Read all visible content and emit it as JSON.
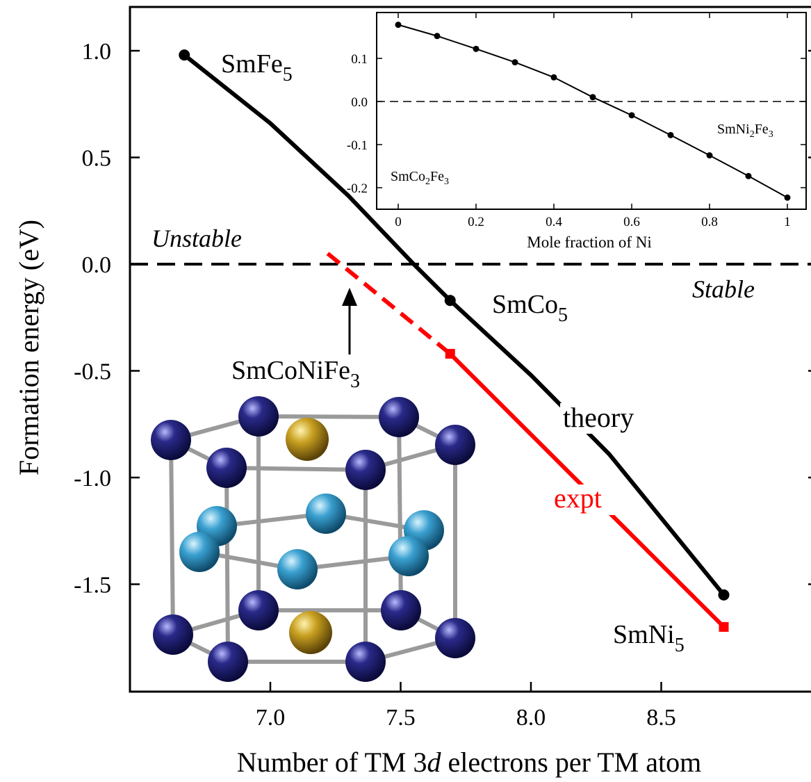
{
  "chart_data": [
    {
      "type": "line",
      "xlabel_parts": [
        "Number of TM 3",
        "d",
        " electrons per TM atom"
      ],
      "ylabel": "Formation energy (eV)",
      "xlim": [
        6.5,
        9.0
      ],
      "ylim": [
        -2.0,
        1.2
      ],
      "xticks": [
        7.0,
        7.5,
        8.0,
        8.5
      ],
      "xtick_labels": [
        "7.0",
        "7.5",
        "8.0",
        "8.5"
      ],
      "yticks": [
        1.0,
        0.5,
        0.0,
        -0.5,
        -1.0,
        -1.5
      ],
      "ytick_labels": [
        "1.0",
        "0.5",
        "0.0",
        "-0.5",
        "-1.0",
        "-1.5"
      ],
      "reference_line": {
        "y": 0.0,
        "style": "dashed"
      },
      "region_labels": [
        "Unstable",
        "Stable"
      ],
      "series": [
        {
          "name": "theory",
          "color": "#000000",
          "style": "solid",
          "x": [
            6.67,
            7.0,
            7.3,
            7.55,
            7.69,
            8.0,
            8.3,
            8.74
          ],
          "y": [
            0.98,
            0.66,
            0.32,
            0.0,
            -0.17,
            -0.52,
            -0.89,
            -1.55
          ],
          "marked_x": [
            6.67,
            7.69,
            8.74
          ]
        },
        {
          "name": "expt",
          "color": "#ff0000",
          "segments": [
            {
              "style": "dashed",
              "x": [
                7.22,
                7.69
              ],
              "y": [
                0.05,
                -0.42
              ]
            },
            {
              "style": "solid",
              "x": [
                7.69,
                8.74
              ],
              "y": [
                -0.42,
                -1.7
              ]
            }
          ],
          "marked_x": [
            7.69,
            8.74
          ]
        }
      ],
      "compound_labels": [
        {
          "id": "smfe5",
          "text": "SmFe",
          "sub": "5"
        },
        {
          "id": "smco5",
          "text": "SmCo",
          "sub": "5"
        },
        {
          "id": "smni5",
          "text": "SmNi",
          "sub": "5"
        },
        {
          "id": "smconife3",
          "text": "SmCoNiFe",
          "sub": "3"
        }
      ]
    },
    {
      "type": "line",
      "xlabel": "Mole fraction of Ni",
      "xlim": [
        -0.05,
        1.05
      ],
      "ylim": [
        -0.26,
        0.2
      ],
      "xticks": [
        0,
        0.2,
        0.4,
        0.6,
        0.8,
        1
      ],
      "xtick_labels": [
        "0",
        "0.2",
        "0.4",
        "0.6",
        "0.8",
        "1"
      ],
      "yticks": [
        0.1,
        0.0,
        -0.1,
        -0.2
      ],
      "ytick_labels": [
        "0.1",
        "0.0",
        "-0.1",
        "-0.2"
      ],
      "reference_line": {
        "y": 0.0,
        "style": "dashed"
      },
      "series": [
        {
          "color": "#000000",
          "x": [
            0,
            0.1,
            0.2,
            0.3,
            0.4,
            0.5,
            0.6,
            0.7,
            0.8,
            0.9,
            1.0
          ],
          "y": [
            0.178,
            0.152,
            0.122,
            0.091,
            0.056,
            0.01,
            -0.032,
            -0.078,
            -0.125,
            -0.173,
            -0.223
          ]
        }
      ],
      "end_labels": [
        {
          "id": "smco2fe3",
          "parts": [
            "SmCo",
            "2",
            "Fe",
            "3"
          ]
        },
        {
          "id": "smni2fe3",
          "parts": [
            "SmNi",
            "2",
            "Fe",
            "3"
          ]
        }
      ]
    }
  ],
  "crystal_structure_colors": {
    "sm_atom": "#c8a020",
    "tm_atom_outer": "#2a2a8a",
    "tm_atom_middle": "#3aa0d0",
    "bond": "#aaaaaa"
  }
}
